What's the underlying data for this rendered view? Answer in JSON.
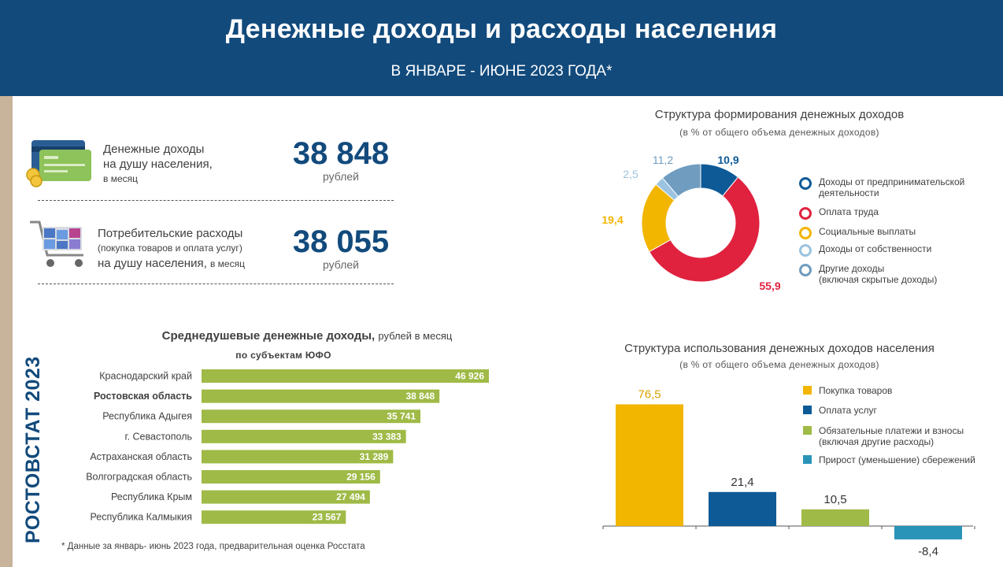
{
  "header": {
    "title": "Денежные доходы и расходы населения",
    "subtitle": "В ЯНВАРЕ - ИЮНЕ 2023 ГОДА*"
  },
  "brand": "РОСТОВСТАТ 2023",
  "kpi": {
    "income": {
      "label_line1": "Денежные доходы",
      "label_line2": "на душу населения,",
      "label_line3": "в месяц",
      "value": "38 848",
      "unit": "рублей",
      "icon": "credit-card-coins-icon"
    },
    "spending": {
      "label_line1": "Потребительские расходы",
      "label_line2": "(покупка товаров и оплата услуг)",
      "label_line3": "на душу населения,",
      "label_line3_suffix": "в месяц",
      "value": "38 055",
      "unit": "рублей",
      "icon": "shopping-cart-icon"
    }
  },
  "footnote": "* Данные за январь- июнь 2023 года, предварительная оценка Росстата",
  "chart_data": [
    {
      "type": "pie",
      "title": "Структура формирования денежных доходов",
      "subtitle": "(в % от общего объема денежных доходов)",
      "slices": [
        {
          "name": "Доходы от предпринимательской деятельности",
          "value": 10.9,
          "label": "10,9",
          "color": "#0e5a96"
        },
        {
          "name": "Оплата труда",
          "value": 55.9,
          "label": "55,9",
          "color": "#e0223f"
        },
        {
          "name": "Социальные выплаты",
          "value": 19.4,
          "label": "19,4",
          "color": "#f2b500"
        },
        {
          "name": "Доходы от собственности",
          "value": 2.5,
          "label": "2,5",
          "color": "#9cc3e0"
        },
        {
          "name": "Другие доходы (включая скрытые доходы)",
          "value": 11.2,
          "label": "11,2",
          "color": "#6f9cbf"
        }
      ],
      "legend": [
        {
          "line1": "Доходы от предпринимательской",
          "line2": "деятельности",
          "color": "#0e5a96"
        },
        {
          "line1": "Оплата труда",
          "line2": "",
          "color": "#e0223f"
        },
        {
          "line1": "Социальные выплаты",
          "line2": "",
          "color": "#f2b500"
        },
        {
          "line1": "Доходы от собственности",
          "line2": "",
          "color": "#9cc3e0"
        },
        {
          "line1": "Другие доходы",
          "line2": "(включая скрытые доходы)",
          "color": "#6f9cbf"
        }
      ]
    },
    {
      "type": "bar",
      "orientation": "horizontal",
      "title": "Среднедушевые денежные доходы,",
      "title_suffix": "рублей в месяц",
      "subtitle": "по субъектам ЮФО",
      "categories": [
        "Краснодарский край",
        "Ростовская область",
        "Республика Адыгея",
        "г. Севастополь",
        "Астраханская область",
        "Волгоградская область",
        "Республика Крым",
        "Республика Калмыкия"
      ],
      "values": [
        46926,
        38848,
        35741,
        33383,
        31289,
        29156,
        27494,
        23567
      ],
      "value_labels": [
        "46 926",
        "38 848",
        "35 741",
        "33 383",
        "31 289",
        "29 156",
        "27 494",
        "23 567"
      ],
      "highlight": "Ростовская область",
      "color": "#9fba46"
    },
    {
      "type": "bar",
      "title": "Структура использования денежных доходов населения",
      "subtitle": "(в % от общего объема денежных доходов)",
      "categories": [
        "Покупка товаров",
        "Оплата услуг",
        "Обязательные платежи и взносы (включая другие расходы)",
        "Прирост (уменьшение) сбережений"
      ],
      "values": [
        76.5,
        21.4,
        10.5,
        -8.4
      ],
      "value_labels": [
        "76,5",
        "21,4",
        "10,5",
        "-8,4"
      ],
      "colors": [
        "#f2b500",
        "#0e5a96",
        "#9fba46",
        "#2a94b8"
      ],
      "legend": [
        {
          "line1": "Покупка товаров",
          "line2": "",
          "color": "#f2b500"
        },
        {
          "line1": "Оплата услуг",
          "line2": "",
          "color": "#0e5a96"
        },
        {
          "line1": "Обязательные платежи и взносы",
          "line2": "(включая другие расходы)",
          "color": "#9fba46"
        },
        {
          "line1": "Прирост (уменьшение) сбережений",
          "line2": "",
          "color": "#2a94b8"
        }
      ]
    }
  ]
}
